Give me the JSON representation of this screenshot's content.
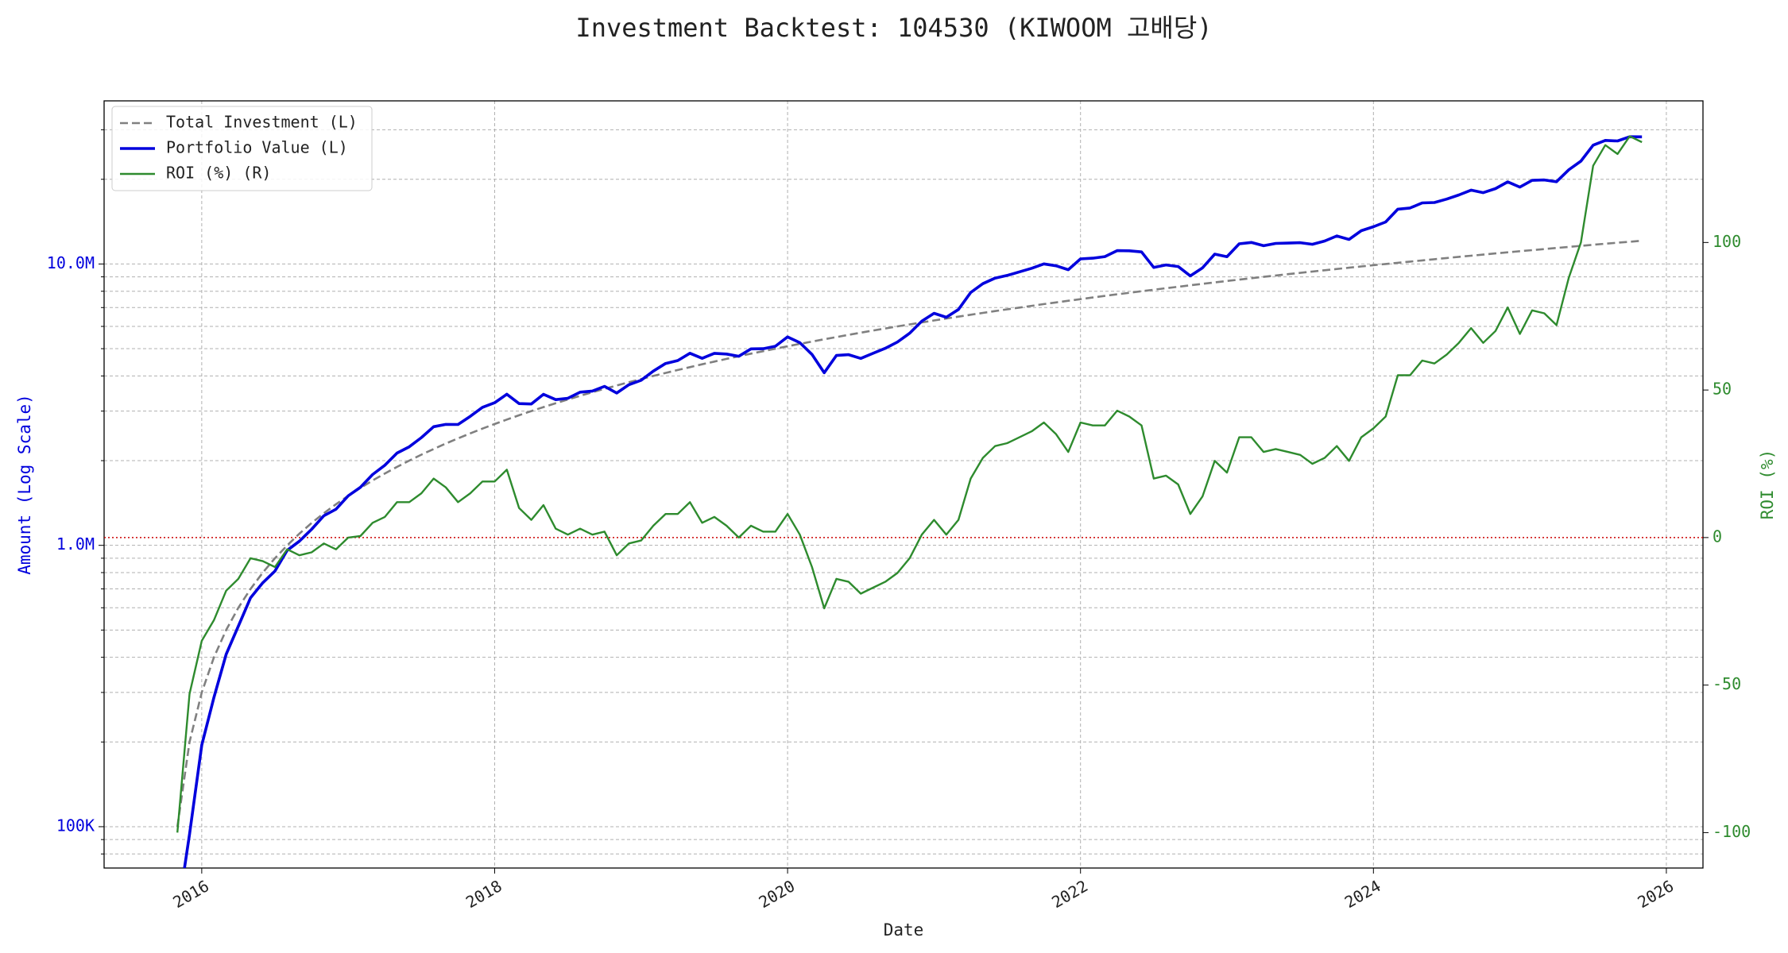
{
  "chart_data": {
    "type": "line",
    "title": "Investment Backtest: 104530 (KIWOOM 고배당)",
    "x_label": "Date",
    "y_label": "Amount (Log Scale)",
    "y2_label": "ROI (%)",
    "x": [
      "2015-11",
      "2015-12",
      "2016-01",
      "2016-02",
      "2016-03",
      "2016-04",
      "2016-05",
      "2016-06",
      "2016-07",
      "2016-08",
      "2016-09",
      "2016-10",
      "2016-11",
      "2016-12",
      "2017-01",
      "2017-02",
      "2017-03",
      "2017-04",
      "2017-05",
      "2017-06",
      "2017-07",
      "2017-08",
      "2017-09",
      "2017-10",
      "2017-11",
      "2017-12",
      "2018-01",
      "2018-02",
      "2018-03",
      "2018-04",
      "2018-05",
      "2018-06",
      "2018-07",
      "2018-08",
      "2018-09",
      "2018-10",
      "2018-11",
      "2018-12",
      "2019-01",
      "2019-02",
      "2019-03",
      "2019-04",
      "2019-05",
      "2019-06",
      "2019-07",
      "2019-08",
      "2019-09",
      "2019-10",
      "2019-11",
      "2019-12",
      "2020-01",
      "2020-02",
      "2020-03",
      "2020-04",
      "2020-05",
      "2020-06",
      "2020-07",
      "2020-08",
      "2020-09",
      "2020-10",
      "2020-11",
      "2020-12",
      "2021-01",
      "2021-02",
      "2021-03",
      "2021-04",
      "2021-05",
      "2021-06",
      "2021-07",
      "2021-08",
      "2021-09",
      "2021-10",
      "2021-11",
      "2021-12",
      "2022-01",
      "2022-02",
      "2022-03",
      "2022-04",
      "2022-05",
      "2022-06",
      "2022-07",
      "2022-08",
      "2022-09",
      "2022-10",
      "2022-11",
      "2022-12",
      "2023-01",
      "2023-02",
      "2023-03",
      "2023-04",
      "2023-05",
      "2023-06",
      "2023-07",
      "2023-08",
      "2023-09",
      "2023-10",
      "2023-11",
      "2023-12",
      "2024-01",
      "2024-02",
      "2024-03",
      "2024-04",
      "2024-05",
      "2024-06",
      "2024-07",
      "2024-08",
      "2024-09",
      "2024-10",
      "2024-11",
      "2024-12",
      "2025-01",
      "2025-02",
      "2025-03",
      "2025-04",
      "2025-05",
      "2025-06",
      "2025-07",
      "2025-08",
      "2025-09",
      "2025-10",
      "2025-11"
    ],
    "series": [
      {
        "name": "Total Investment (L)",
        "color": "#808080",
        "line_style": "dashed",
        "axis": "y",
        "values": [
          100000,
          200000,
          300000,
          400000,
          500000,
          600000,
          700000,
          800000,
          900000,
          1000000,
          1100000,
          1200000,
          1300000,
          1400000,
          1500000,
          1600000,
          1700000,
          1800000,
          1900000,
          2000000,
          2100000,
          2200000,
          2300000,
          2400000,
          2500000,
          2600000,
          2700000,
          2800000,
          2900000,
          3000000,
          3100000,
          3200000,
          3300000,
          3400000,
          3500000,
          3600000,
          3700000,
          3800000,
          3900000,
          4000000,
          4100000,
          4200000,
          4300000,
          4400000,
          4500000,
          4600000,
          4700000,
          4800000,
          4900000,
          5000000,
          5100000,
          5200000,
          5300000,
          5400000,
          5500000,
          5600000,
          5700000,
          5800000,
          5900000,
          6000000,
          6100000,
          6200000,
          6300000,
          6400000,
          6500000,
          6600000,
          6700000,
          6800000,
          6900000,
          7000000,
          7100000,
          7200000,
          7300000,
          7400000,
          7500000,
          7600000,
          7700000,
          7800000,
          7900000,
          8000000,
          8100000,
          8200000,
          8300000,
          8400000,
          8500000,
          8600000,
          8700000,
          8800000,
          8900000,
          9000000,
          9100000,
          9200000,
          9300000,
          9400000,
          9500000,
          9600000,
          9700000,
          9800000,
          9900000,
          10000000,
          10100000,
          10200000,
          10300000,
          10400000,
          10500000,
          10600000,
          10700000,
          10800000,
          10900000,
          11000000,
          11100000,
          11200000,
          11300000,
          11400000,
          11500000,
          11600000,
          11700000,
          11800000,
          11900000,
          12000000,
          12100000
        ]
      },
      {
        "name": "Portfolio Value (L)",
        "color": "#0000dd",
        "line_style": "solid",
        "axis": "y",
        "values": [
          0,
          94000,
          195000,
          288000,
          410000,
          516000,
          651000,
          736000,
          810000,
          960000,
          1034000,
          1140000,
          1274000,
          1344000,
          1500000,
          1608000,
          1785000,
          1926000,
          2128000,
          2240000,
          2415000,
          2640000,
          2691000,
          2688000,
          2875000,
          3094000,
          3213000,
          3444000,
          3190000,
          3180000,
          3441000,
          3296000,
          3333000,
          3502000,
          3535000,
          3672000,
          3478000,
          3724000,
          3861000,
          4160000,
          4428000,
          4536000,
          4816000,
          4620000,
          4815000,
          4784000,
          4700000,
          4992000,
          4998000,
          5100000,
          5508000,
          5252000,
          4770000,
          4104000,
          4730000,
          4760000,
          4617000,
          4814000,
          5015000,
          5280000,
          5673000,
          6262000,
          6678000,
          6464000,
          6890000,
          7920000,
          8509000,
          8908000,
          9108000,
          9380000,
          9656000,
          10008000,
          9855000,
          9546000,
          10425000,
          10488000,
          10626000,
          11154000,
          11139000,
          11040000,
          9720000,
          9922000,
          9794000,
          9072000,
          9690000,
          10836000,
          10614000,
          11792000,
          11926000,
          11610000,
          11830000,
          11868000,
          11904000,
          11750000,
          12065000,
          12576000,
          12222000,
          13132000,
          13563000,
          14100000,
          15655000,
          15810000,
          16480000,
          16536000,
          17010000,
          17596000,
          18297000,
          17928000,
          18530000,
          19580000,
          18759000,
          19824000,
          19888000,
          19608000,
          21620000,
          23200000,
          26442000,
          27494000,
          27370000,
          28320000,
          28314000
        ]
      },
      {
        "name": "ROI (%) (R)",
        "color": "#2e8b2e",
        "line_style": "solid",
        "axis": "y2",
        "values": [
          -100,
          -53,
          -35,
          -28,
          -18,
          -14,
          -7,
          -8,
          -10,
          -4,
          -6,
          -5,
          -2,
          -4,
          0,
          0.5,
          5,
          7,
          12,
          12,
          15,
          20,
          17,
          12,
          15,
          19,
          19,
          23,
          10,
          6,
          11,
          3,
          1,
          3,
          1,
          2,
          -6,
          -2,
          -1,
          4,
          8,
          8,
          12,
          5,
          7,
          4,
          0,
          4,
          2,
          2,
          8,
          1,
          -10,
          -24,
          -14,
          -15,
          -19,
          -17,
          -15,
          -12,
          -7,
          1,
          6,
          1,
          6,
          20,
          27,
          31,
          32,
          34,
          36,
          39,
          35,
          29,
          39,
          38,
          38,
          43,
          41,
          38,
          20,
          21,
          18,
          8,
          14,
          26,
          22,
          34,
          34,
          29,
          30,
          29,
          28,
          25,
          27,
          31,
          26,
          34,
          37,
          41,
          55,
          55,
          60,
          59,
          62,
          66,
          71,
          66,
          70,
          78,
          69,
          77,
          76,
          72,
          88,
          100,
          126,
          133,
          130,
          136,
          134
        ]
      }
    ],
    "xlim": [
      "2015-05",
      "2026-04"
    ],
    "xticks": [
      "2016",
      "2018",
      "2020",
      "2022",
      "2024",
      "2026"
    ],
    "log_y": true,
    "ylim": [
      71300,
      38000000
    ],
    "yticks": [
      {
        "value": 100000,
        "label": "100K"
      },
      {
        "value": 1000000,
        "label": "1.0M"
      },
      {
        "value": 10000000,
        "label": "10.0M"
      }
    ],
    "y_minor_ticks": [
      80000,
      90000,
      200000,
      300000,
      400000,
      500000,
      600000,
      700000,
      800000,
      900000,
      2000000,
      3000000,
      4000000,
      5000000,
      6000000,
      7000000,
      8000000,
      9000000,
      20000000,
      30000000
    ],
    "y2lim": [
      -112,
      148
    ],
    "y2ticks": [
      -100,
      -50,
      0,
      50,
      100
    ],
    "reference_line": {
      "value": 0,
      "axis": "y2",
      "color": "#cc0000"
    },
    "grid": true,
    "legend": "upper left"
  }
}
